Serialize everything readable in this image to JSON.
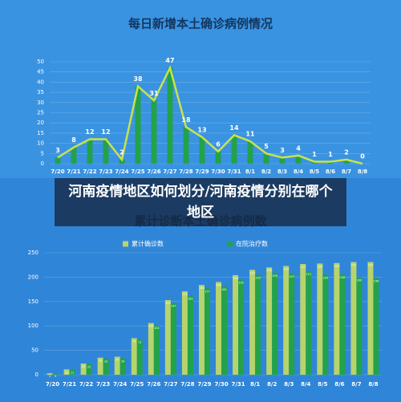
{
  "chart_data": [
    {
      "type": "combo",
      "title": "每日新增本土确诊病例情况",
      "categories": [
        "7/20",
        "7/21",
        "7/22",
        "7/23",
        "7/24",
        "7/25",
        "7/26",
        "7/27",
        "7/28",
        "7/29",
        "7/30",
        "7/31",
        "8/1",
        "8/2",
        "8/3",
        "8/4",
        "8/5",
        "8/6",
        "8/7",
        "8/8"
      ],
      "values": [
        3,
        8,
        12,
        12,
        2,
        38,
        31,
        47,
        18,
        13,
        6,
        14,
        11,
        5,
        3,
        4,
        1,
        1,
        2,
        0
      ],
      "bar_color": "#23a24a",
      "line_color": "#c9e24c",
      "ylim": [
        0,
        50
      ],
      "yticks": [
        0,
        5,
        10,
        15,
        20,
        25,
        30,
        35,
        40,
        45,
        50
      ],
      "grid": true
    },
    {
      "type": "bar",
      "title": "累计诊断本土确诊病例数",
      "categories": [
        "7/20",
        "7/21",
        "7/22",
        "7/23",
        "7/24",
        "7/25",
        "7/26",
        "7/27",
        "7/28",
        "7/29",
        "7/30",
        "7/31",
        "8/1",
        "8/2",
        "8/3",
        "8/4",
        "8/5",
        "8/6",
        "8/7",
        "8/8"
      ],
      "series": [
        {
          "name": "累计确诊数",
          "color": "#b7d36c",
          "values": [
            3,
            11,
            23,
            35,
            37,
            75,
            106,
            153,
            171,
            184,
            190,
            204,
            215,
            220,
            223,
            227,
            228,
            229,
            231,
            231
          ]
        },
        {
          "name": "在院治疗数",
          "color": "#23a24a",
          "values": [
            3,
            11,
            22,
            33,
            34,
            72,
            102,
            147,
            162,
            177,
            181,
            195,
            205,
            209,
            207,
            212,
            205,
            206,
            200,
            198
          ]
        }
      ],
      "ylim": [
        0,
        250
      ],
      "yticks": [
        0,
        50,
        100,
        150,
        200,
        250
      ],
      "grid": true
    }
  ],
  "overlay": {
    "text": "河南疫情地区如何划分/河南疫情分别在哪个地区"
  }
}
